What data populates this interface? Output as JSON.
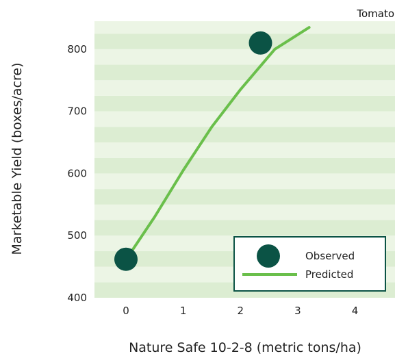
{
  "chart_data": {
    "type": "scatter",
    "corner_label": "Tomato",
    "xlabel": "Nature Safe 10-2-8 (metric tons/ha)",
    "ylabel": "Marketable Yield (boxes/acre)",
    "xlim": [
      -0.55,
      4.7
    ],
    "ylim": [
      400,
      845
    ],
    "xticks": [
      0,
      1,
      2,
      3,
      4
    ],
    "yticks": [
      400,
      500,
      600,
      700,
      800
    ],
    "grid": "horizontal bands",
    "legend": {
      "position": "bottom-right"
    },
    "series": [
      {
        "name": "Observed",
        "kind": "points",
        "x": [
          0,
          2.35
        ],
        "y": [
          462,
          810
        ],
        "color": "#0b5345"
      },
      {
        "name": "Predicted",
        "kind": "line",
        "x": [
          0.1,
          0.5,
          1.0,
          1.5,
          2.0,
          2.6,
          3.2
        ],
        "y": [
          475,
          530,
          605,
          675,
          735,
          800,
          835
        ],
        "color": "#6abf4b"
      }
    ],
    "colors": {
      "band_dark": "#dcedd2",
      "band_light": "#ecf5e5",
      "legend_border": "#0b5345"
    }
  }
}
